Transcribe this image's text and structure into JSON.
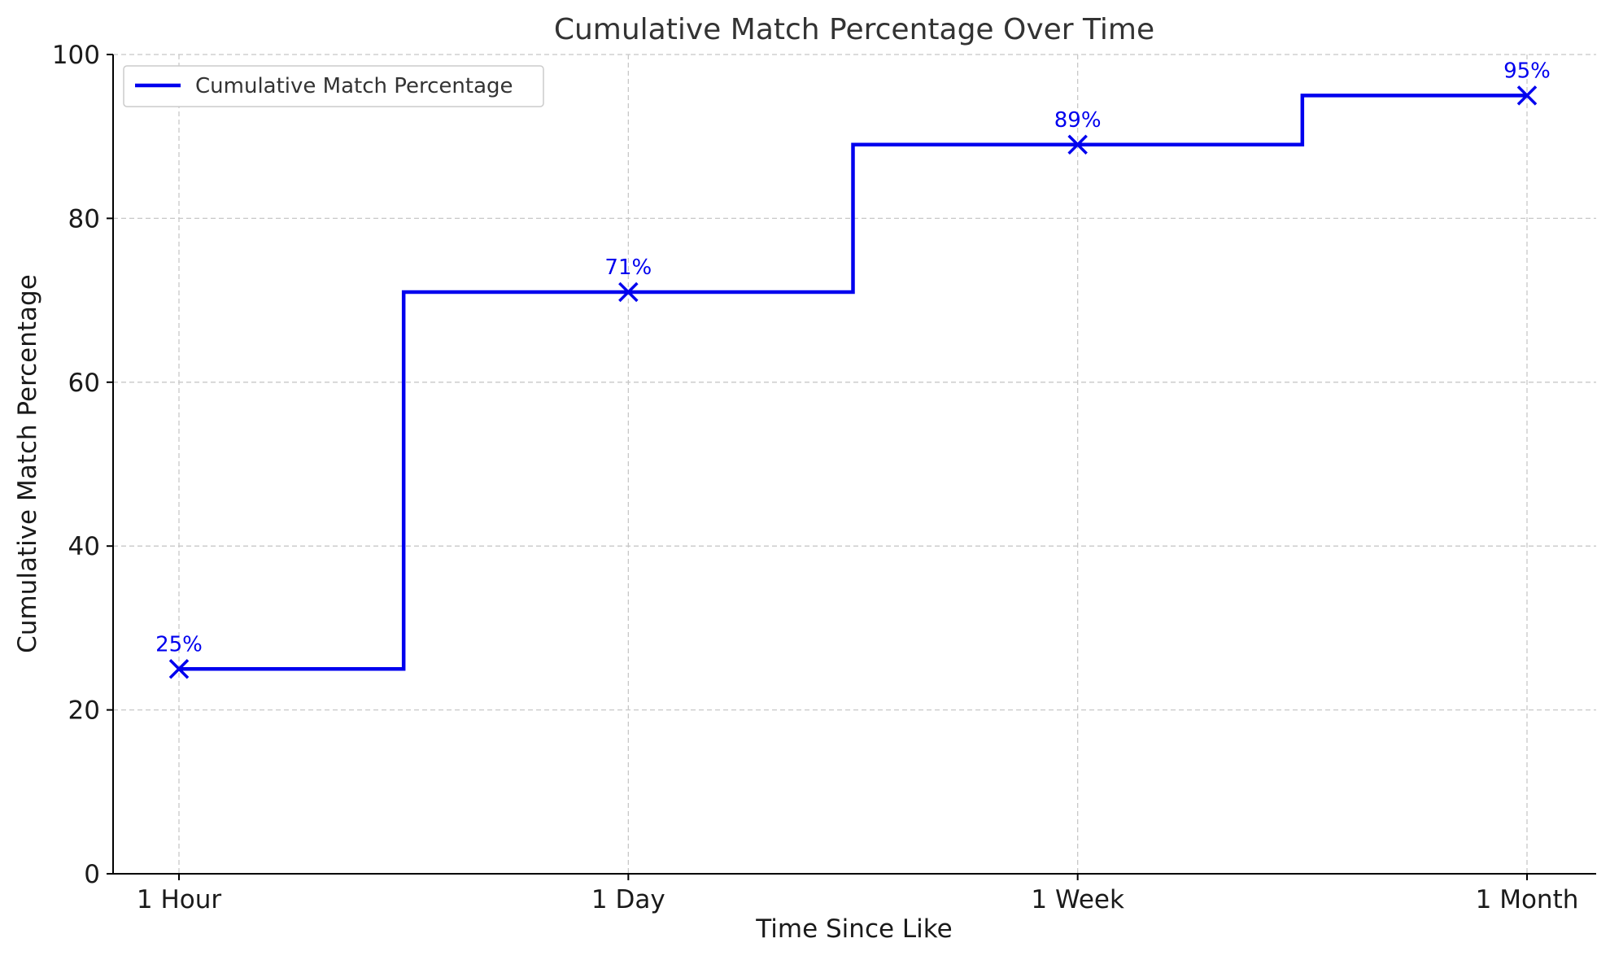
{
  "chart_data": {
    "type": "line",
    "step": "mid",
    "title": "Cumulative Match Percentage Over Time",
    "xlabel": "Time Since Like",
    "ylabel": "Cumulative Match Percentage",
    "categories": [
      "1 Hour",
      "1 Day",
      "1 Week",
      "1 Month"
    ],
    "series": [
      {
        "name": "Cumulative Match Percentage",
        "values": [
          25,
          71,
          89,
          95
        ],
        "data_labels": [
          "25%",
          "71%",
          "89%",
          "95%"
        ],
        "color": "#0000ee",
        "marker": "x"
      }
    ],
    "ylim": [
      0,
      100
    ],
    "yticks": [
      0,
      20,
      40,
      60,
      80,
      100
    ],
    "ytick_labels": [
      "0",
      "20",
      "40",
      "60",
      "80",
      "100"
    ],
    "grid": true,
    "legend_position": "top-left"
  }
}
